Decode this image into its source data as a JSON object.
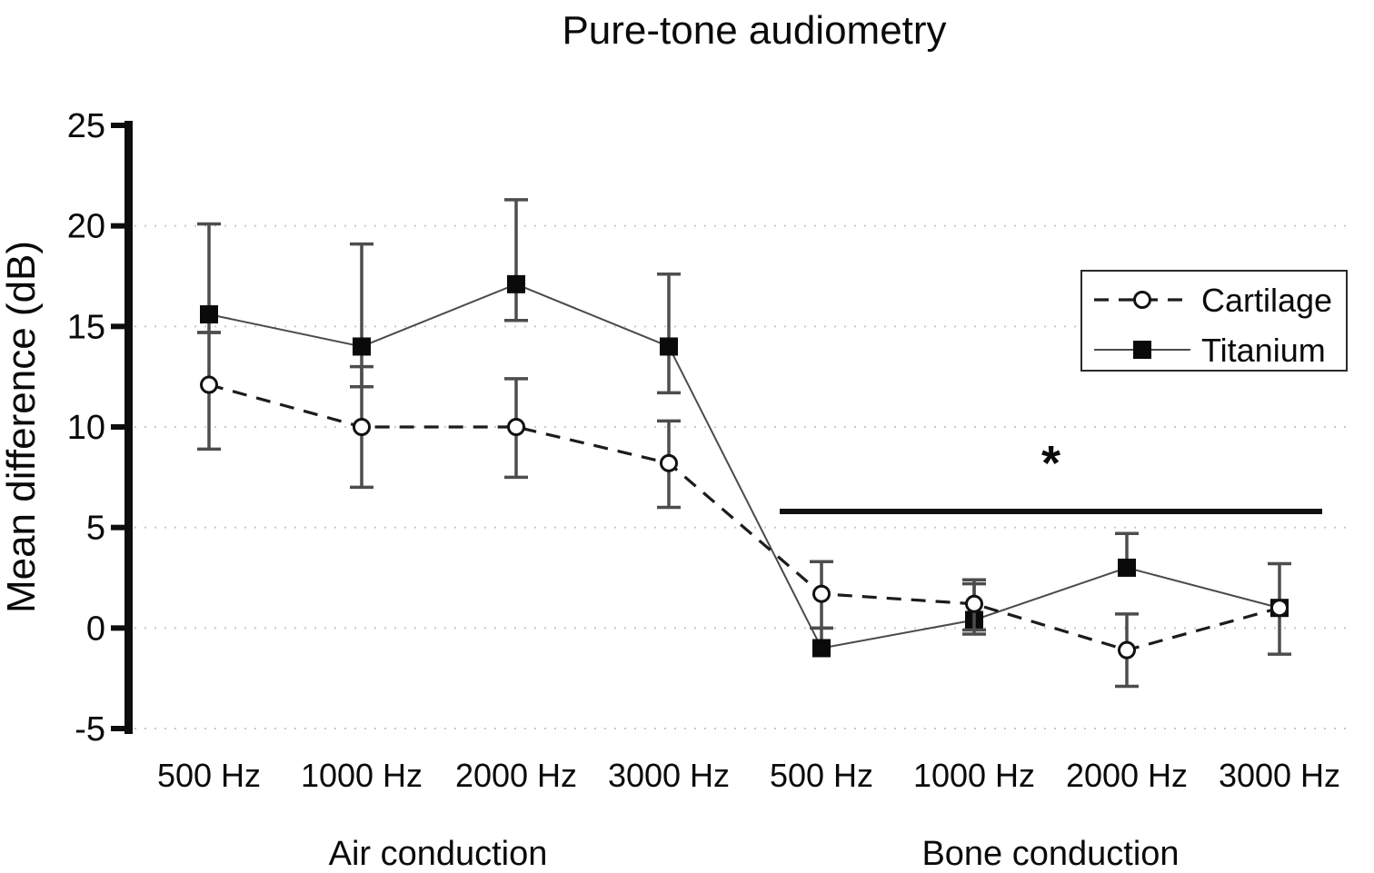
{
  "chart_data": {
    "type": "line",
    "title": "Pure-tone audiometry",
    "ylabel": "Mean difference (dB)",
    "xlabel": "",
    "ylim": [
      -5,
      25
    ],
    "yticks": [
      25,
      20,
      15,
      10,
      5,
      0,
      -5
    ],
    "gridline_values": [
      20,
      15,
      10,
      5,
      0,
      -5
    ],
    "grid_style": "dotted horizontal",
    "categories": [
      "500 Hz",
      "1000 Hz",
      "2000 Hz",
      "3000 Hz",
      "500 Hz",
      "1000 Hz",
      "2000 Hz",
      "3000 Hz"
    ],
    "groups": [
      {
        "label": "Air conduction",
        "category_indexes": [
          0,
          1,
          2,
          3
        ]
      },
      {
        "label": "Bone conduction",
        "category_indexes": [
          4,
          5,
          6,
          7
        ]
      }
    ],
    "series": [
      {
        "name": "Titanium",
        "marker": "filled-square",
        "line_style": "solid",
        "values": [
          15.6,
          14.0,
          17.1,
          14.0,
          -1.0,
          0.4,
          3.0,
          1.0
        ],
        "error_low": [
          14.7,
          12.0,
          15.3,
          11.7,
          null,
          -0.3,
          null,
          -1.3
        ],
        "error_high": [
          20.1,
          19.1,
          21.3,
          17.6,
          0.0,
          2.2,
          4.7,
          3.2
        ]
      },
      {
        "name": "Cartilage",
        "marker": "open-circle",
        "line_style": "dashed",
        "values": [
          12.1,
          10.0,
          10.0,
          8.2,
          1.7,
          1.2,
          -1.1,
          1.0
        ],
        "error_low": [
          8.9,
          7.0,
          7.5,
          6.0,
          0.0,
          -0.1,
          -2.9,
          null
        ],
        "error_high": [
          14.7,
          13.0,
          12.4,
          10.3,
          3.3,
          2.4,
          0.7,
          null
        ]
      }
    ],
    "legend": {
      "position": "middle-right",
      "entries": [
        "Cartilage",
        "Titanium"
      ]
    },
    "significance": {
      "label": "*",
      "y_value": 5.8,
      "span_categories": [
        4,
        7
      ],
      "spans_group": "Bone conduction",
      "color": "#36454f"
    }
  }
}
